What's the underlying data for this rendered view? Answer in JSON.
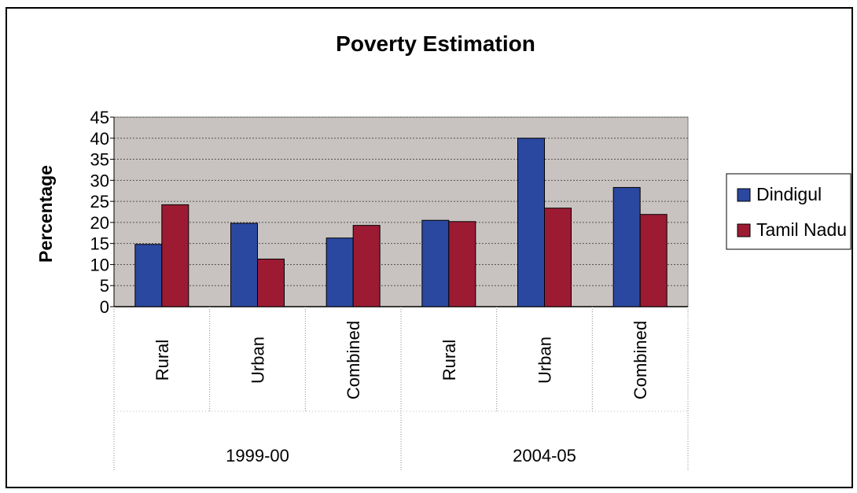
{
  "chart_data": {
    "type": "bar",
    "title": "Poverty Estimation",
    "xlabel": "",
    "ylabel": "Percentage",
    "ylim": [
      0,
      45
    ],
    "yticks": [
      0,
      5,
      10,
      15,
      20,
      25,
      30,
      35,
      40,
      45
    ],
    "grid": true,
    "legend_position": "right",
    "groups": [
      "1999-00",
      "2004-05"
    ],
    "categories": [
      "Rural",
      "Urban",
      "Combined",
      "Rural",
      "Urban",
      "Combined"
    ],
    "category_groups": [
      0,
      0,
      0,
      1,
      1,
      1
    ],
    "series": [
      {
        "name": "Dindigul",
        "color": "#2b48a0",
        "values": [
          14.8,
          19.8,
          16.3,
          20.5,
          40.0,
          28.3
        ]
      },
      {
        "name": "Tamil Nadu",
        "color": "#9c1b33",
        "values": [
          24.2,
          11.3,
          19.3,
          20.2,
          23.4,
          21.9
        ]
      }
    ],
    "plot_background": "#c8c3c0"
  }
}
